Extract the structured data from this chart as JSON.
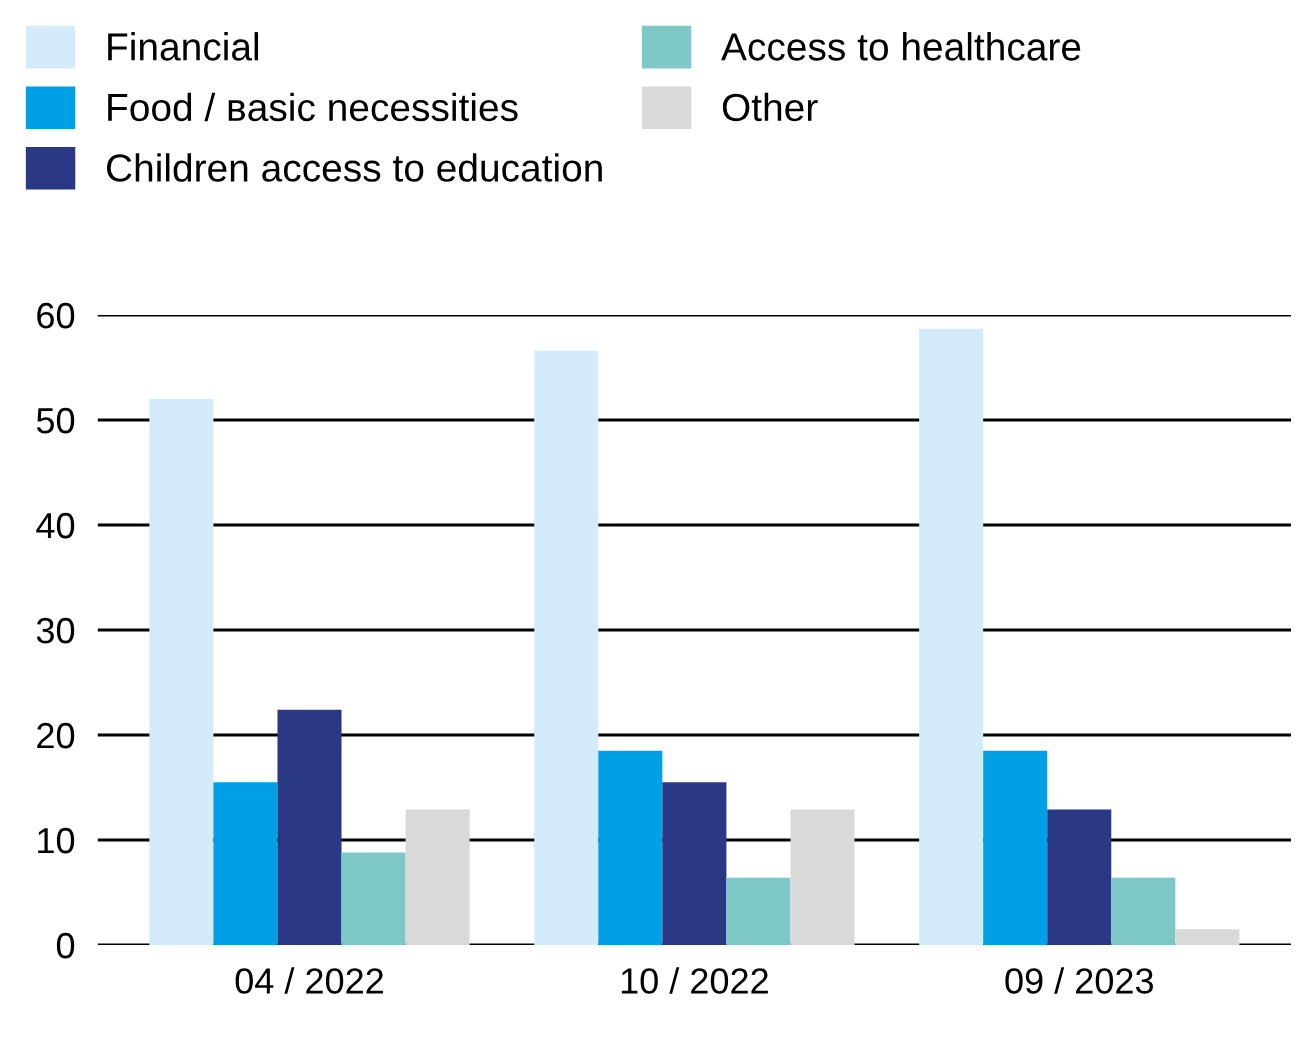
{
  "chart_data": {
    "type": "bar",
    "categories": [
      "04 / 2022",
      "10 / 2022",
      "09 / 2023"
    ],
    "series": [
      {
        "name": "Financial",
        "color": "#d4ebfa",
        "values": [
          52,
          56.6,
          58.7
        ]
      },
      {
        "name": "Food / вasic necessities",
        "color": "#00a0e6",
        "values": [
          15.5,
          18.5,
          18.5
        ]
      },
      {
        "name": "Children access to education",
        "color": "#2a3885",
        "values": [
          22.4,
          15.5,
          12.9
        ]
      },
      {
        "name": "Access to healthcare",
        "color": "#7ec8c8",
        "values": [
          8.8,
          6.4,
          6.4
        ]
      },
      {
        "name": "Other",
        "color": "#d9d9d9",
        "values": [
          12.9,
          12.9,
          1.5
        ]
      }
    ],
    "ylim": [
      0,
      60
    ],
    "yticks": [
      0,
      10,
      20,
      30,
      40,
      50,
      60
    ],
    "grid": "y",
    "legend": "top left"
  }
}
